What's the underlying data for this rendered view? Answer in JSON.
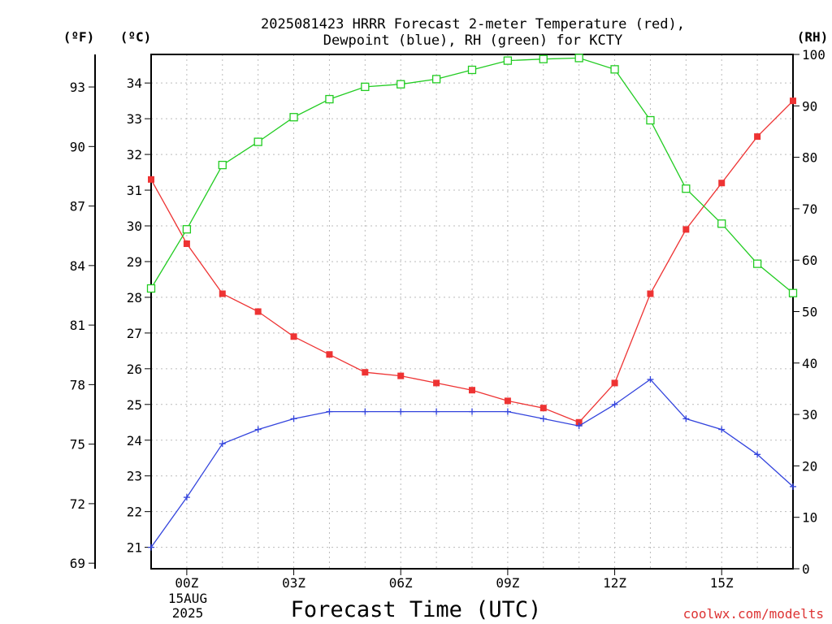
{
  "chart_data": {
    "type": "line",
    "title": "2025081423 HRRR Forecast 2-meter Temperature (red),",
    "subtitle": "Dewpoint (blue), RH (green) for KCTY",
    "xlabel": "Forecast Time (UTC)",
    "credit": "coolwx.com/modelts",
    "colors": {
      "temperature": "#ee3333",
      "dewpoint": "#3344dd",
      "rh": "#22cc22",
      "grid": "#bbbbbb"
    },
    "units": {
      "fahrenheit": "(ºF)",
      "celsius": "(ºC)",
      "rh": "(RH)"
    },
    "x": [
      23,
      24,
      25,
      26,
      27,
      28,
      29,
      30,
      31,
      32,
      33,
      34,
      35,
      36,
      37,
      38,
      39,
      40,
      41
    ],
    "xlim": [
      23,
      41
    ],
    "x_ticks": [
      {
        "x": 24,
        "label": "00Z"
      },
      {
        "x": 27,
        "label": "03Z"
      },
      {
        "x": 30,
        "label": "06Z"
      },
      {
        "x": 33,
        "label": "09Z"
      },
      {
        "x": 36,
        "label": "12Z"
      },
      {
        "x": 39,
        "label": "15Z"
      }
    ],
    "date_line1": "15AUG",
    "date_line2": "2025",
    "y_celsius_lim": [
      20.4,
      34.8
    ],
    "y_celsius_ticks": [
      "21",
      "22",
      "23",
      "24",
      "25",
      "26",
      "27",
      "28",
      "29",
      "30",
      "31",
      "32",
      "33",
      "34"
    ],
    "y_fahrenheit_ticks": [
      "69",
      "72",
      "75",
      "78",
      "81",
      "84",
      "87",
      "90",
      "93"
    ],
    "y_rh_lim": [
      0,
      100
    ],
    "y_rh_ticks": [
      "0",
      "10",
      "20",
      "30",
      "40",
      "50",
      "60",
      "70",
      "80",
      "90",
      "100"
    ],
    "series": [
      {
        "name": "Temperature",
        "axis": "celsius",
        "color": "#ee3333",
        "marker": "filled-square",
        "values": [
          31.3,
          29.5,
          28.1,
          27.6,
          26.9,
          26.4,
          25.9,
          25.8,
          25.6,
          25.4,
          25.1,
          24.9,
          24.5,
          25.6,
          28.1,
          29.9,
          31.2,
          32.5,
          33.5
        ]
      },
      {
        "name": "Dewpoint",
        "axis": "celsius",
        "color": "#3344dd",
        "marker": "plus",
        "values": [
          21.0,
          22.4,
          23.9,
          24.3,
          24.6,
          24.8,
          24.8,
          24.8,
          24.8,
          24.8,
          24.8,
          24.6,
          24.4,
          25.0,
          25.7,
          24.6,
          24.3,
          23.6,
          22.7
        ]
      },
      {
        "name": "RH",
        "axis": "rh",
        "color": "#22cc22",
        "marker": "open-square",
        "values": [
          54.5,
          66.0,
          78.5,
          83.0,
          87.8,
          91.3,
          93.7,
          94.2,
          95.2,
          97.0,
          98.8,
          99.1,
          99.3,
          97.1,
          87.2,
          73.9,
          67.1,
          59.3,
          53.6
        ]
      }
    ]
  }
}
